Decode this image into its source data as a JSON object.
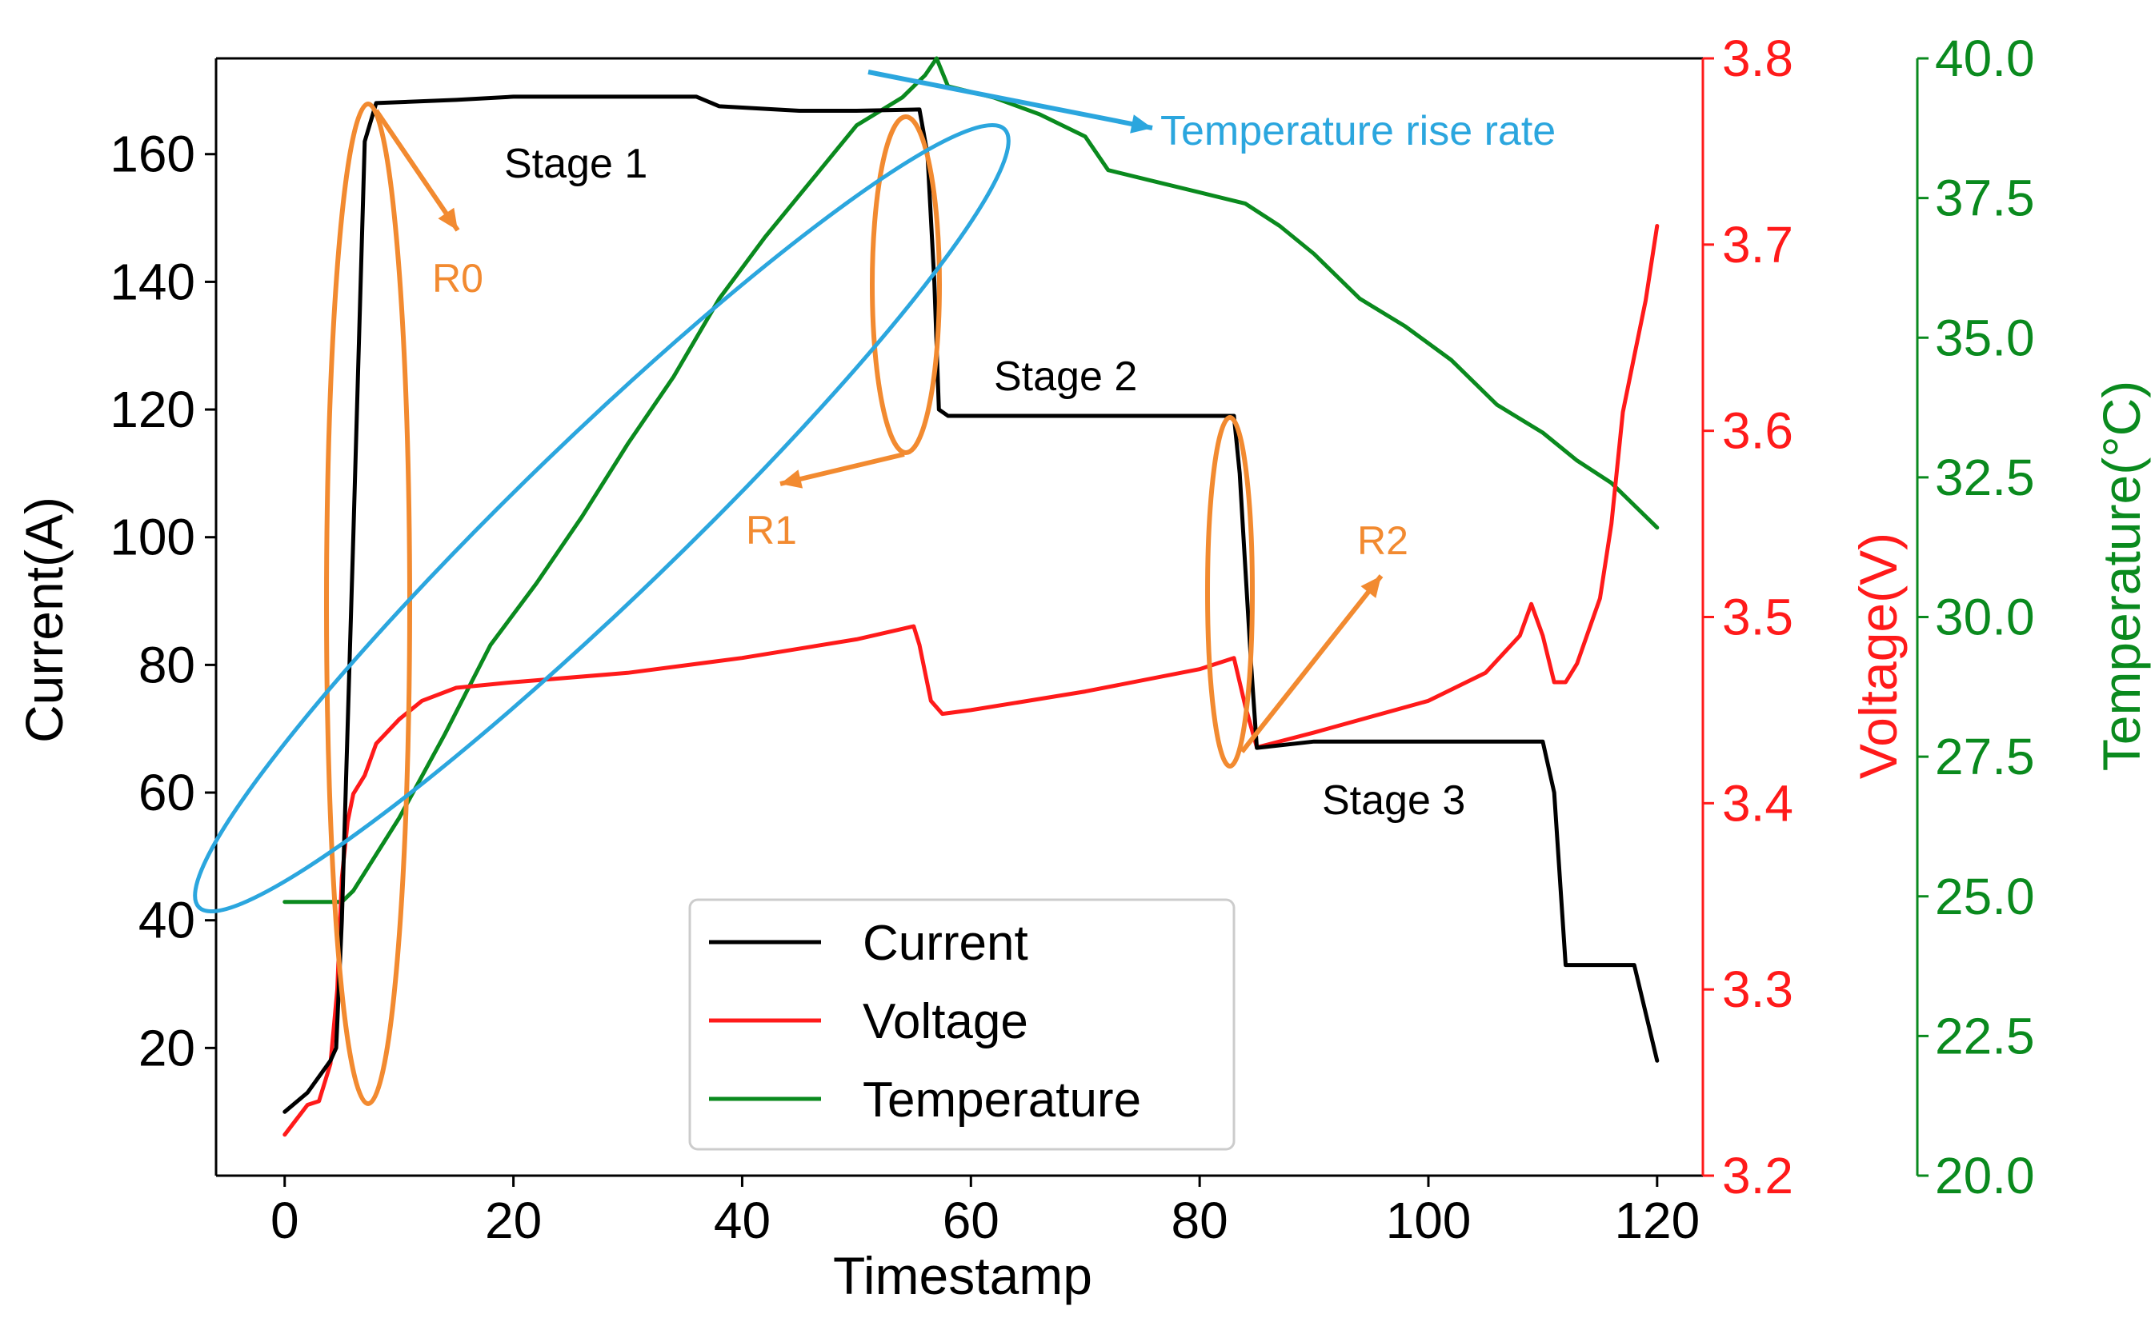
{
  "chart_data": {
    "type": "line",
    "xlabel": "Timestamp",
    "x_ticks": [
      "0",
      "20",
      "40",
      "60",
      "80",
      "100",
      "120"
    ],
    "xlim": [
      -6,
      124
    ],
    "axes": {
      "current": {
        "label": "Current(A)",
        "ylim": [
          0,
          175
        ],
        "ticks": [
          "20",
          "40",
          "60",
          "80",
          "100",
          "120",
          "140",
          "160"
        ],
        "color": "#000000"
      },
      "voltage": {
        "label": "Voltage(V)",
        "ylim": [
          3.2,
          3.8
        ],
        "ticks": [
          "3.2",
          "3.3",
          "3.4",
          "3.5",
          "3.6",
          "3.7",
          "3.8"
        ],
        "color": "#ff1a1a"
      },
      "temperature": {
        "label": "Temperature(°C)",
        "ylim": [
          20.0,
          40.0
        ],
        "ticks": [
          "20.0",
          "22.5",
          "25.0",
          "27.5",
          "30.0",
          "32.5",
          "35.0",
          "37.5",
          "40.0"
        ],
        "color": "#0a8a1e"
      }
    },
    "series": [
      {
        "name": "Current",
        "axis": "current",
        "color": "#000000",
        "points": [
          [
            0,
            10
          ],
          [
            2,
            13
          ],
          [
            4,
            18
          ],
          [
            4.5,
            20
          ],
          [
            5,
            40
          ],
          [
            6,
            100
          ],
          [
            7,
            162
          ],
          [
            8,
            168
          ],
          [
            15,
            168.5
          ],
          [
            20,
            169
          ],
          [
            30,
            169
          ],
          [
            36,
            169
          ],
          [
            38,
            167.5
          ],
          [
            45,
            166.8
          ],
          [
            50,
            166.8
          ],
          [
            55.5,
            167
          ],
          [
            56.2,
            160
          ],
          [
            56.8,
            140
          ],
          [
            57.2,
            120
          ],
          [
            58,
            119
          ],
          [
            70,
            119
          ],
          [
            83,
            119
          ],
          [
            83.5,
            110
          ],
          [
            84,
            95
          ],
          [
            84.5,
            80
          ],
          [
            85,
            67
          ],
          [
            90,
            68
          ],
          [
            100,
            68
          ],
          [
            110,
            68
          ],
          [
            111,
            60
          ],
          [
            112,
            33
          ],
          [
            118,
            33
          ],
          [
            120,
            18
          ]
        ]
      },
      {
        "name": "Voltage",
        "axis": "voltage",
        "color": "#ff1a1a",
        "points": [
          [
            0,
            3.222
          ],
          [
            1,
            3.23
          ],
          [
            2,
            3.238
          ],
          [
            3,
            3.24
          ],
          [
            4,
            3.26
          ],
          [
            4.6,
            3.3
          ],
          [
            5,
            3.36
          ],
          [
            5.5,
            3.39
          ],
          [
            6,
            3.405
          ],
          [
            7,
            3.415
          ],
          [
            8,
            3.432
          ],
          [
            10,
            3.445
          ],
          [
            12,
            3.455
          ],
          [
            15,
            3.462
          ],
          [
            20,
            3.465
          ],
          [
            30,
            3.47
          ],
          [
            40,
            3.478
          ],
          [
            50,
            3.488
          ],
          [
            55,
            3.495
          ],
          [
            55.5,
            3.485
          ],
          [
            56.5,
            3.455
          ],
          [
            57.5,
            3.448
          ],
          [
            60,
            3.45
          ],
          [
            70,
            3.46
          ],
          [
            80,
            3.472
          ],
          [
            83,
            3.478
          ],
          [
            84,
            3.452
          ],
          [
            85,
            3.43
          ],
          [
            90,
            3.438
          ],
          [
            100,
            3.455
          ],
          [
            105,
            3.47
          ],
          [
            108,
            3.49
          ],
          [
            109,
            3.507
          ],
          [
            110,
            3.49
          ],
          [
            111,
            3.465
          ],
          [
            112,
            3.465
          ],
          [
            113,
            3.475
          ],
          [
            115,
            3.51
          ],
          [
            116,
            3.55
          ],
          [
            117,
            3.61
          ],
          [
            118,
            3.64
          ],
          [
            119,
            3.67
          ],
          [
            120,
            3.71
          ]
        ]
      },
      {
        "name": "Temperature",
        "axis": "temperature",
        "color": "#0a8a1e",
        "points": [
          [
            0,
            24.9
          ],
          [
            5,
            24.9
          ],
          [
            6,
            25.1
          ],
          [
            10,
            26.4
          ],
          [
            14,
            27.9
          ],
          [
            18,
            29.5
          ],
          [
            22,
            30.6
          ],
          [
            26,
            31.8
          ],
          [
            30,
            33.1
          ],
          [
            34,
            34.3
          ],
          [
            38,
            35.7
          ],
          [
            42,
            36.8
          ],
          [
            46,
            37.8
          ],
          [
            50,
            38.8
          ],
          [
            54,
            39.3
          ],
          [
            56,
            39.7
          ],
          [
            57,
            40.0
          ],
          [
            58,
            39.5
          ],
          [
            62,
            39.3
          ],
          [
            66,
            39.0
          ],
          [
            70,
            38.6
          ],
          [
            72,
            38.0
          ],
          [
            76,
            37.8
          ],
          [
            80,
            37.6
          ],
          [
            84,
            37.4
          ],
          [
            87,
            37.0
          ],
          [
            90,
            36.5
          ],
          [
            94,
            35.7
          ],
          [
            98,
            35.2
          ],
          [
            102,
            34.6
          ],
          [
            106,
            33.8
          ],
          [
            110,
            33.3
          ],
          [
            113,
            32.8
          ],
          [
            116,
            32.4
          ],
          [
            120,
            31.6
          ]
        ]
      }
    ],
    "legend": {
      "position": "lower-center",
      "entries": [
        "Current",
        "Voltage",
        "Temperature"
      ]
    },
    "annotations": {
      "stage1": "Stage 1",
      "stage2": "Stage 2",
      "stage3": "Stage 3",
      "r0": "R0",
      "r1": "R1",
      "r2": "R2",
      "temp_rise": "Temperature rise rate"
    },
    "annotation_colors": {
      "ellipse": "#f28a30",
      "temp_rise": "#2ba6de"
    }
  }
}
